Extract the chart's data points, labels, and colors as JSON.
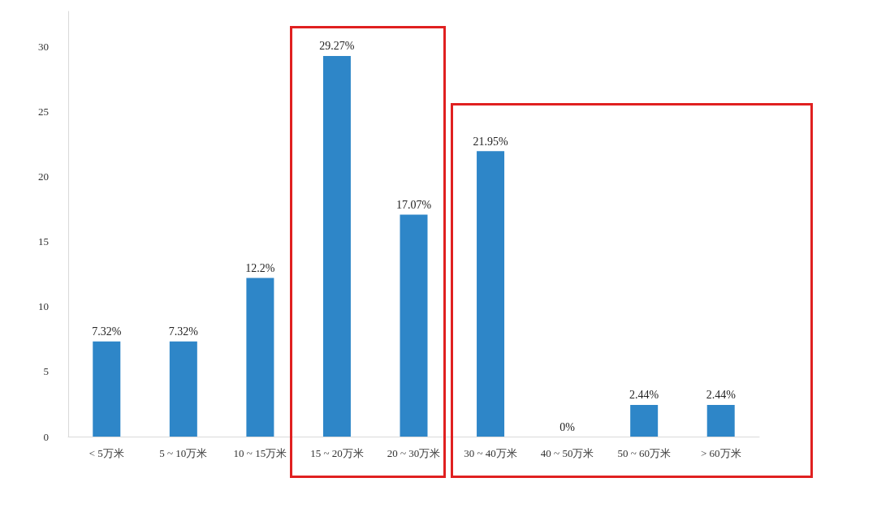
{
  "chart_data": {
    "type": "bar",
    "categories": [
      "< 5万米",
      "5 ~ 10万米",
      "10 ~ 15万米",
      "15 ~ 20万米",
      "20 ~ 30万米",
      "30 ~ 40万米",
      "40 ~ 50万米",
      "50 ~ 60万米",
      "> 60万米"
    ],
    "values": [
      7.32,
      7.32,
      12.2,
      29.27,
      17.07,
      21.95,
      0,
      2.44,
      2.44
    ],
    "value_labels": [
      "7.32%",
      "7.32%",
      "12.2%",
      "29.27%",
      "17.07%",
      "21.95%",
      "0%",
      "2.44%",
      "2.44%"
    ],
    "color": "#2e86c8",
    "ylim": [
      0,
      32.7
    ],
    "yticks": [
      0,
      5,
      10,
      15,
      20,
      25,
      30
    ],
    "grid": false
  }
}
